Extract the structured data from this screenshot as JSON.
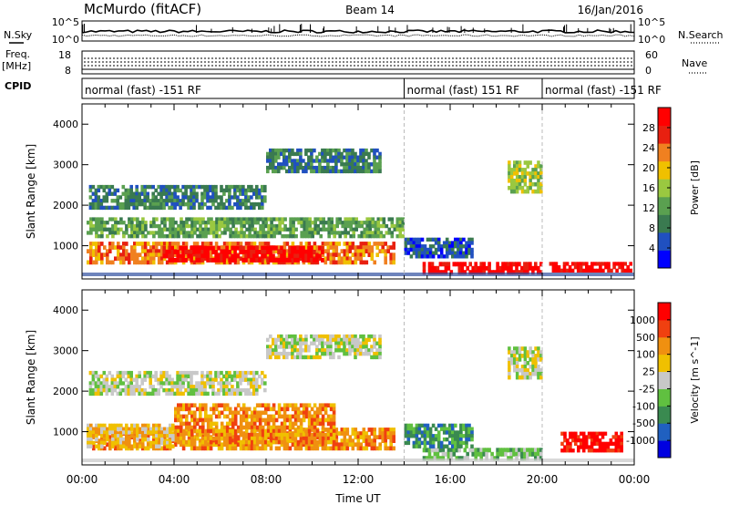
{
  "header": {
    "station": "McMurdo (fitACF)",
    "beam": "Beam 14",
    "date": "16/Jan/2016"
  },
  "side_labels": {
    "nsky": "N.Sky",
    "nsearch": "N.Search",
    "freq": "Freq.",
    "freq_unit": "[MHz]",
    "nave": "Nave",
    "cpid": "CPID",
    "nsky_top": "10^5",
    "nsky_bottom": "10^0",
    "nsearch_top": "10^5",
    "nsearch_bottom": "10^0",
    "freq_top": "18",
    "freq_bottom": "8",
    "nave_top": "60",
    "nave_bottom": "0"
  },
  "cpid_segments": [
    {
      "label": "normal (fast) -151 RF",
      "start_hour": 0
    },
    {
      "label": "normal (fast) 151 RF",
      "start_hour": 14
    },
    {
      "label": "normal (fast) -151 RF",
      "start_hour": 20
    }
  ],
  "chart_data": [
    {
      "type": "heatmap",
      "quantity": "Power",
      "ylabel": "Slant Range [km]",
      "colorbar_label": "Power [dB]",
      "ylim": [
        180,
        4500
      ],
      "yticks": [
        1000,
        2000,
        3000,
        4000
      ],
      "xlim_hours": [
        0,
        24
      ],
      "colorbar_ticks": [
        "28",
        "24",
        "20",
        "16",
        "12",
        "8",
        "4"
      ],
      "colorscale": [
        "#0000ff",
        "#2050c0",
        "#3a7a50",
        "#5aa050",
        "#9ac840",
        "#f0c000",
        "#f08020",
        "#e82010",
        "#ff0000"
      ],
      "regions": [
        {
          "t0": 0.2,
          "t1": 13.6,
          "r0": 550,
          "r1": 1100,
          "level": 6
        },
        {
          "t0": 3.5,
          "t1": 10.5,
          "r0": 600,
          "r1": 1000,
          "level": 8
        },
        {
          "t0": 0.2,
          "t1": 14.0,
          "r0": 1200,
          "r1": 1700,
          "level": 3
        },
        {
          "t0": 0.3,
          "t1": 8.0,
          "r0": 1900,
          "r1": 2500,
          "level": 2
        },
        {
          "t0": 8.0,
          "t1": 13.0,
          "r0": 2800,
          "r1": 3400,
          "level": 2
        },
        {
          "t0": 14.8,
          "t1": 20.0,
          "r0": 300,
          "r1": 600,
          "level": 8
        },
        {
          "t0": 20.3,
          "t1": 23.9,
          "r0": 350,
          "r1": 600,
          "level": 8
        },
        {
          "t0": 18.5,
          "t1": 20.0,
          "r0": 2300,
          "r1": 3100,
          "level": 4
        },
        {
          "t0": 14.0,
          "t1": 17.0,
          "r0": 700,
          "r1": 1200,
          "level": 1
        }
      ]
    },
    {
      "type": "heatmap",
      "quantity": "Velocity",
      "ylabel": "Slant Range [km]",
      "colorbar_label": "Velocity [m s^-1]",
      "ylim": [
        180,
        4500
      ],
      "yticks": [
        1000,
        2000,
        3000,
        4000
      ],
      "xlim_hours": [
        0,
        24
      ],
      "colorbar_ticks": [
        "1000",
        "500",
        "100",
        "25",
        "-25",
        "-100",
        "-500",
        "-1000"
      ],
      "colorscale": [
        "#0000e0",
        "#2060c0",
        "#3a8a50",
        "#60c040",
        "#c8c8c8",
        "#f0c000",
        "#f09010",
        "#f04010",
        "#ff0000"
      ],
      "regions": [
        {
          "t0": 0.2,
          "t1": 13.6,
          "r0": 550,
          "r1": 1100,
          "level": 6
        },
        {
          "t0": 4.0,
          "t1": 11.0,
          "r0": 700,
          "r1": 1700,
          "level": 6
        },
        {
          "t0": 0.2,
          "t1": 4.0,
          "r0": 600,
          "r1": 1200,
          "level": 5
        },
        {
          "t0": 0.3,
          "t1": 8.0,
          "r0": 1900,
          "r1": 2500,
          "level": 4
        },
        {
          "t0": 8.0,
          "t1": 13.0,
          "r0": 2800,
          "r1": 3400,
          "level": 4
        },
        {
          "t0": 14.8,
          "t1": 20.0,
          "r0": 300,
          "r1": 600,
          "level": 3
        },
        {
          "t0": 20.8,
          "t1": 23.5,
          "r0": 500,
          "r1": 1000,
          "level": 8
        },
        {
          "t0": 18.5,
          "t1": 20.0,
          "r0": 2300,
          "r1": 3100,
          "level": 4
        },
        {
          "t0": 14.0,
          "t1": 17.0,
          "r0": 600,
          "r1": 1200,
          "level": 2
        }
      ]
    }
  ],
  "x_axis": {
    "label": "Time UT",
    "ticks": [
      "00:00",
      "04:00",
      "08:00",
      "12:00",
      "16:00",
      "20:00",
      "00:00"
    ]
  }
}
